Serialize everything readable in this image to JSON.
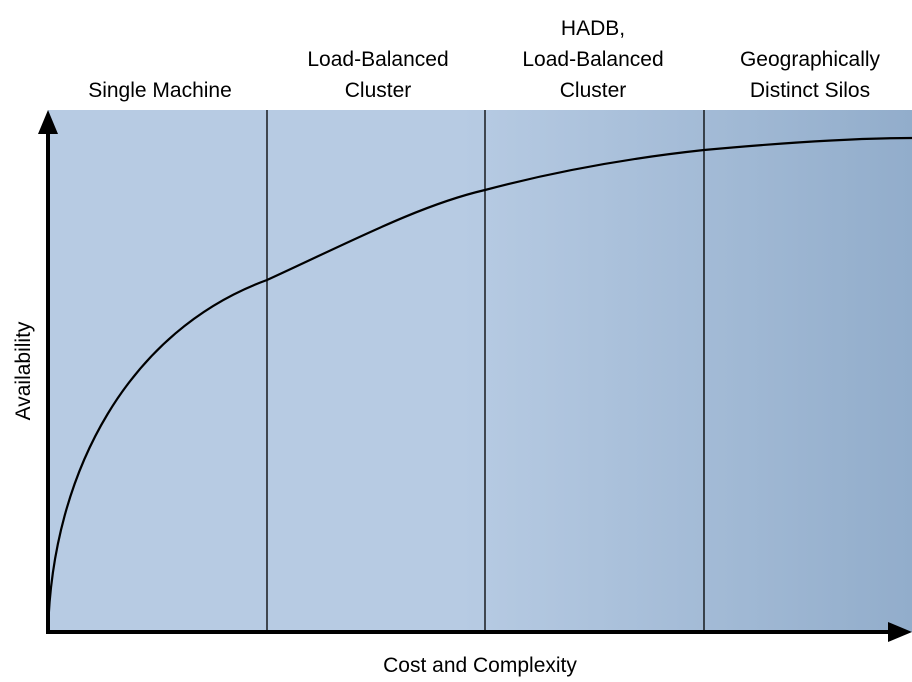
{
  "columns": [
    {
      "lines": [
        "Single Machine"
      ]
    },
    {
      "lines": [
        "Load-Balanced",
        "Cluster"
      ]
    },
    {
      "lines": [
        "HADB,",
        "Load-Balanced",
        "Cluster"
      ]
    },
    {
      "lines": [
        "Geographically",
        "Distinct Silos"
      ]
    }
  ],
  "y_axis_label": "Availability",
  "x_axis_label": "Cost and Complexity"
}
